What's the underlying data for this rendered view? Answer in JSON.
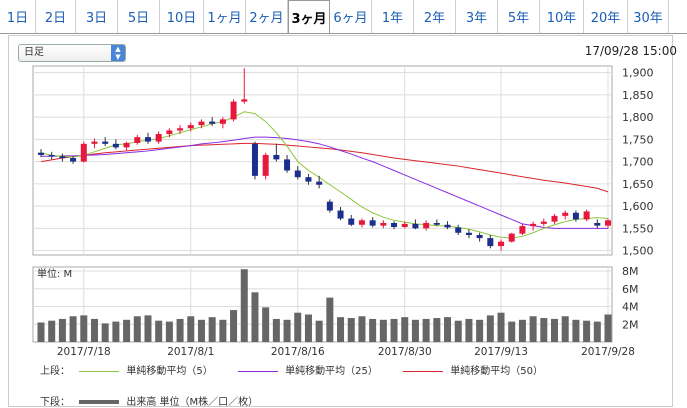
{
  "tabs": [
    "1日",
    "2日",
    "3日",
    "5日",
    "10日",
    "1ヶ月",
    "2ヶ月",
    "3ヶ月",
    "6ヶ月",
    "1年",
    "2年",
    "3年",
    "5年",
    "10年",
    "20年",
    "30年"
  ],
  "active_tab": "3ヶ月",
  "interval_select": {
    "value": "日足"
  },
  "timestamp": "17/09/28 15:00",
  "volume_unit_label": "単位: M",
  "legend": {
    "upper_label": "上段：",
    "ma5": "単純移動平均（5）",
    "ma25": "単純移動平均（25）",
    "ma50": "単純移動平均（50）",
    "lower_label": "下段：",
    "volume": "出来高 単位（M株／口／枚）"
  },
  "colors": {
    "up": "#e8173c",
    "down": "#1c2f8f",
    "ma5": "#8dc63f",
    "ma25": "#8a2be2",
    "ma50": "#d9232d",
    "volume": "#666666"
  },
  "chart_data": {
    "type": "candlestick",
    "price_axis": {
      "ticks": [
        "1,900",
        "1,850",
        "1,800",
        "1,750",
        "1,700",
        "1,650",
        "1,600",
        "1,550",
        "1,500"
      ],
      "ylim": [
        1490,
        1915
      ]
    },
    "volume_axis": {
      "ticks": [
        "8M",
        "6M",
        "4M",
        "2M"
      ],
      "ylim": [
        0,
        8
      ]
    },
    "date_labels": [
      "2017/7/18",
      "2017/8/1",
      "2017/8/16",
      "2017/8/30",
      "2017/9/13",
      "2017/9/28"
    ],
    "candles": [
      [
        1720,
        1728,
        1710,
        1715
      ],
      [
        1715,
        1722,
        1705,
        1712
      ],
      [
        1712,
        1718,
        1700,
        1708
      ],
      [
        1708,
        1712,
        1695,
        1700
      ],
      [
        1700,
        1745,
        1698,
        1740
      ],
      [
        1740,
        1752,
        1730,
        1745
      ],
      [
        1745,
        1755,
        1735,
        1740
      ],
      [
        1740,
        1750,
        1728,
        1732
      ],
      [
        1732,
        1745,
        1725,
        1742
      ],
      [
        1742,
        1760,
        1738,
        1755
      ],
      [
        1755,
        1765,
        1740,
        1745
      ],
      [
        1745,
        1768,
        1740,
        1762
      ],
      [
        1762,
        1775,
        1755,
        1770
      ],
      [
        1770,
        1782,
        1762,
        1775
      ],
      [
        1775,
        1788,
        1768,
        1782
      ],
      [
        1782,
        1795,
        1775,
        1790
      ],
      [
        1790,
        1800,
        1780,
        1785
      ],
      [
        1785,
        1800,
        1775,
        1795
      ],
      [
        1795,
        1840,
        1790,
        1835
      ],
      [
        1835,
        1910,
        1830,
        1840
      ],
      [
        1740,
        1745,
        1660,
        1668
      ],
      [
        1668,
        1720,
        1660,
        1715
      ],
      [
        1715,
        1740,
        1700,
        1705
      ],
      [
        1705,
        1715,
        1675,
        1680
      ],
      [
        1680,
        1690,
        1660,
        1665
      ],
      [
        1665,
        1672,
        1648,
        1655
      ],
      [
        1655,
        1668,
        1640,
        1648
      ],
      [
        1610,
        1615,
        1585,
        1590
      ],
      [
        1590,
        1598,
        1568,
        1572
      ],
      [
        1572,
        1580,
        1555,
        1558
      ],
      [
        1558,
        1572,
        1552,
        1568
      ],
      [
        1568,
        1575,
        1552,
        1556
      ],
      [
        1556,
        1568,
        1550,
        1562
      ],
      [
        1562,
        1566,
        1548,
        1553
      ],
      [
        1553,
        1565,
        1550,
        1560
      ],
      [
        1560,
        1570,
        1548,
        1550
      ],
      [
        1550,
        1568,
        1545,
        1562
      ],
      [
        1562,
        1570,
        1555,
        1558
      ],
      [
        1558,
        1566,
        1548,
        1552
      ],
      [
        1552,
        1558,
        1535,
        1540
      ],
      [
        1540,
        1548,
        1528,
        1535
      ],
      [
        1535,
        1540,
        1520,
        1528
      ],
      [
        1528,
        1535,
        1505,
        1510
      ],
      [
        1510,
        1525,
        1500,
        1520
      ],
      [
        1520,
        1540,
        1518,
        1538
      ],
      [
        1538,
        1560,
        1535,
        1555
      ],
      [
        1555,
        1565,
        1545,
        1560
      ],
      [
        1560,
        1572,
        1555,
        1565
      ],
      [
        1565,
        1582,
        1560,
        1578
      ],
      [
        1578,
        1590,
        1570,
        1585
      ],
      [
        1585,
        1590,
        1565,
        1570
      ],
      [
        1570,
        1592,
        1566,
        1588
      ],
      [
        1562,
        1570,
        1550,
        1556
      ],
      [
        1556,
        1572,
        1550,
        1568
      ]
    ],
    "ma5": [
      1720,
      1714,
      1712,
      1710,
      1715,
      1722,
      1730,
      1738,
      1740,
      1745,
      1748,
      1752,
      1758,
      1765,
      1772,
      1778,
      1785,
      1790,
      1800,
      1812,
      1808,
      1790,
      1765,
      1735,
      1700,
      1680,
      1665,
      1648,
      1632,
      1615,
      1598,
      1585,
      1575,
      1568,
      1564,
      1560,
      1558,
      1556,
      1555,
      1552,
      1548,
      1542,
      1535,
      1530,
      1528,
      1532,
      1540,
      1550,
      1558,
      1565,
      1570,
      1572,
      1574,
      1572
    ],
    "ma25": [
      1712,
      1712,
      1713,
      1713,
      1714,
      1715,
      1716,
      1718,
      1720,
      1722,
      1724,
      1727,
      1730,
      1733,
      1736,
      1740,
      1742,
      1745,
      1748,
      1752,
      1755,
      1755,
      1754,
      1752,
      1749,
      1745,
      1740,
      1733,
      1725,
      1717,
      1708,
      1700,
      1690,
      1680,
      1670,
      1660,
      1650,
      1640,
      1630,
      1620,
      1610,
      1600,
      1590,
      1580,
      1570,
      1560,
      1556,
      1552,
      1550,
      1550,
      1550,
      1550,
      1550,
      1550
    ],
    "ma50": [
      1700,
      1704,
      1708,
      1711,
      1714,
      1717,
      1720,
      1722,
      1724,
      1726,
      1728,
      1730,
      1732,
      1734,
      1736,
      1737,
      1738,
      1739,
      1740,
      1741,
      1741,
      1740,
      1739,
      1737,
      1735,
      1733,
      1731,
      1729,
      1726,
      1723,
      1720,
      1716,
      1712,
      1708,
      1705,
      1702,
      1699,
      1696,
      1693,
      1690,
      1686,
      1682,
      1678,
      1674,
      1670,
      1666,
      1662,
      1658,
      1655,
      1652,
      1648,
      1644,
      1640,
      1632
    ],
    "volume": [
      2.2,
      2.4,
      2.6,
      2.9,
      3.0,
      2.6,
      2.1,
      2.3,
      2.5,
      2.9,
      3.0,
      2.4,
      2.3,
      2.6,
      2.9,
      2.5,
      2.8,
      2.5,
      3.6,
      8.2,
      5.6,
      3.9,
      2.6,
      2.5,
      3.3,
      3.1,
      2.4,
      5.0,
      2.8,
      2.7,
      2.9,
      2.6,
      2.5,
      2.6,
      2.8,
      2.5,
      2.6,
      2.7,
      2.8,
      2.4,
      2.6,
      2.5,
      3.0,
      3.3,
      2.3,
      2.5,
      2.9,
      2.7,
      2.6,
      2.9,
      2.5,
      2.4,
      2.3,
      3.1
    ]
  }
}
